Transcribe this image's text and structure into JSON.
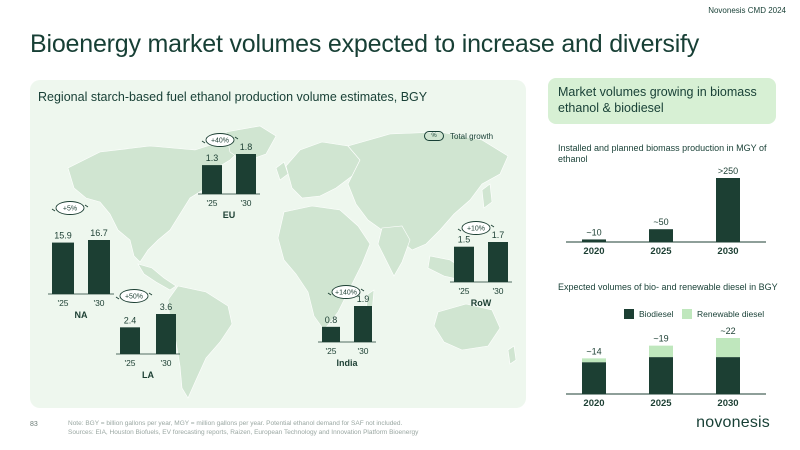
{
  "header": {
    "event": "Novonesis CMD 2024",
    "title": "Bioenergy market volumes expected to increase and diversify"
  },
  "colors": {
    "dark": "#1c3f33",
    "light": "#bfe7bd",
    "panel": "#eef7ee",
    "map": "#d0e5d1"
  },
  "left_panel": {
    "title": "Regional starch-based fuel ethanol production volume estimates, BGY",
    "legend_badge": "%",
    "legend_label": "Total growth"
  },
  "right_panel": {
    "header": "Market volumes growing in biomass ethanol & biodiesel",
    "biomass_title": "Installed and planned biomass production in MGY of ethanol",
    "diesel_title": "Expected volumes of bio- and renewable diesel in BGY",
    "diesel_legend": {
      "biodiesel": "Biodiesel",
      "renewable": "Renewable diesel"
    }
  },
  "chart_data": [
    {
      "type": "bar",
      "title": "Regional starch-based fuel ethanol production volume estimates, BGY",
      "unit": "BGY",
      "regions": [
        {
          "name": "NA",
          "categories": [
            "'25",
            "'30"
          ],
          "values": [
            15.9,
            16.7
          ],
          "labels": [
            "15.9",
            "16.7"
          ],
          "growth": "+5%"
        },
        {
          "name": "EU",
          "categories": [
            "'25",
            "'30"
          ],
          "values": [
            1.3,
            1.8
          ],
          "labels": [
            "1.3",
            "1.8"
          ],
          "growth": "+40%"
        },
        {
          "name": "LA",
          "categories": [
            "'25",
            "'30"
          ],
          "values": [
            2.4,
            3.6
          ],
          "labels": [
            "2.4",
            "3.6"
          ],
          "growth": "+50%"
        },
        {
          "name": "India",
          "categories": [
            "'25",
            "'30"
          ],
          "values": [
            0.8,
            1.9
          ],
          "labels": [
            "0.8",
            "1.9"
          ],
          "growth": "+140%"
        },
        {
          "name": "RoW",
          "categories": [
            "'25",
            "'30"
          ],
          "values": [
            1.5,
            1.7
          ],
          "labels": [
            "1.5",
            "1.7"
          ],
          "growth": "+10%"
        }
      ]
    },
    {
      "type": "bar",
      "title": "Installed and planned biomass production in MGY of ethanol",
      "categories": [
        "2020",
        "2025",
        "2030"
      ],
      "values": [
        10,
        50,
        250
      ],
      "labels": [
        "~10",
        "~50",
        ">250"
      ]
    },
    {
      "type": "bar",
      "stacked": true,
      "title": "Expected volumes of bio- and renewable diesel in BGY",
      "categories": [
        "2020",
        "2025",
        "2030"
      ],
      "series": [
        {
          "name": "Biodiesel",
          "values": [
            12.5,
            14.5,
            14.5
          ]
        },
        {
          "name": "Renewable diesel",
          "values": [
            1.5,
            4.5,
            7.5
          ]
        }
      ],
      "totals": [
        "~14",
        "~19",
        "~22"
      ]
    }
  ],
  "footer": {
    "page": "83",
    "note": "Note: BGY = billion gallons per year, MGY = million gallons per year. Potential ethanol demand for SAF not included.",
    "sources": "Sources: EIA, Houston Biofuels, EV forecasting reports, Raizen, European Technology and Innovation Platform Bioenergy",
    "brand": "novonesis"
  }
}
